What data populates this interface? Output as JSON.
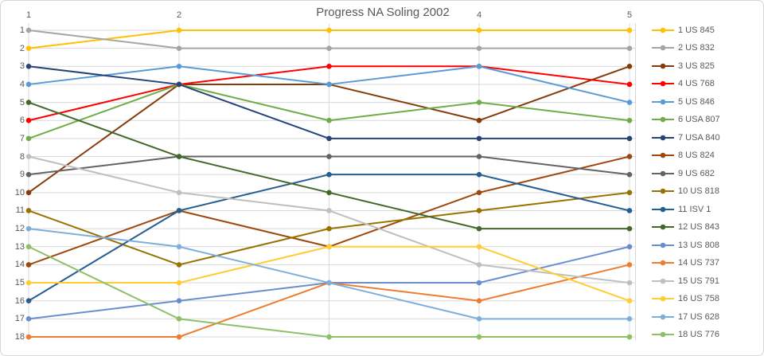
{
  "chart_data": {
    "type": "line",
    "title": "Progress NA Soling 2002",
    "x_axis_position": "top",
    "x_tick_labels": [
      "1",
      "2",
      "3",
      "4",
      "5"
    ],
    "y_axis": {
      "reversed": true,
      "min": 1,
      "max": 18,
      "tick_labels": [
        "1",
        "2",
        "3",
        "4",
        "5",
        "6",
        "7",
        "8",
        "9",
        "10",
        "11",
        "12",
        "13",
        "14",
        "15",
        "16",
        "17",
        "18"
      ]
    },
    "grid": "on",
    "legend_position": "right",
    "grid_color": "#D9D9D9",
    "text_color": "#595959",
    "series": [
      {
        "name": "1 US 845",
        "color": "#FFC000",
        "ranks": [
          2,
          1,
          1,
          1,
          1
        ]
      },
      {
        "name": "2 US 832",
        "color": "#A5A5A5",
        "ranks": [
          1,
          2,
          2,
          2,
          2
        ]
      },
      {
        "name": "3 US 825",
        "color": "#843C0B",
        "ranks": [
          10,
          4,
          4,
          6,
          3
        ]
      },
      {
        "name": "4 US 768",
        "color": "#FF0000",
        "ranks": [
          6,
          4,
          3,
          3,
          4
        ]
      },
      {
        "name": "5 US 846",
        "color": "#5B9BD5",
        "ranks": [
          4,
          3,
          4,
          3,
          5
        ]
      },
      {
        "name": "6 USA 807",
        "color": "#70AD47",
        "ranks": [
          7,
          4,
          6,
          5,
          6
        ]
      },
      {
        "name": "7 USA 840",
        "color": "#264478",
        "ranks": [
          3,
          4,
          7,
          7,
          7
        ]
      },
      {
        "name": "8 US 824",
        "color": "#9E480E",
        "ranks": [
          14,
          11,
          13,
          10,
          8
        ]
      },
      {
        "name": "9 US 682",
        "color": "#636363",
        "ranks": [
          9,
          8,
          8,
          8,
          9
        ]
      },
      {
        "name": "10 US 818",
        "color": "#997300",
        "ranks": [
          11,
          14,
          12,
          11,
          10
        ]
      },
      {
        "name": "11 ISV 1",
        "color": "#255E91",
        "ranks": [
          16,
          11,
          9,
          9,
          11
        ]
      },
      {
        "name": "12 US 843",
        "color": "#43682B",
        "ranks": [
          5,
          8,
          10,
          12,
          12
        ]
      },
      {
        "name": "13 US 808",
        "color": "#698ED0",
        "ranks": [
          17,
          16,
          15,
          15,
          13
        ]
      },
      {
        "name": "14 US 737",
        "color": "#ED7D31",
        "ranks": [
          18,
          18,
          15,
          16,
          14
        ]
      },
      {
        "name": "15 US 791",
        "color": "#BFBFBF",
        "ranks": [
          8,
          10,
          11,
          14,
          15
        ]
      },
      {
        "name": "16 US 758",
        "color": "#FFCD33",
        "ranks": [
          15,
          15,
          13,
          13,
          16
        ]
      },
      {
        "name": "17 US 628",
        "color": "#7CAFDD",
        "ranks": [
          12,
          13,
          15,
          17,
          17
        ]
      },
      {
        "name": "18 US 776",
        "color": "#8CC168",
        "ranks": [
          13,
          17,
          18,
          18,
          18
        ]
      }
    ]
  }
}
